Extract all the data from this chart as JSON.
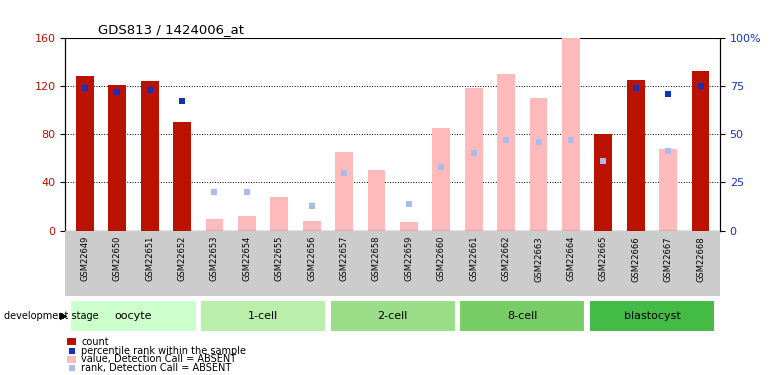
{
  "title": "GDS813 / 1424006_at",
  "samples": [
    "GSM22649",
    "GSM22650",
    "GSM22651",
    "GSM22652",
    "GSM22653",
    "GSM22654",
    "GSM22655",
    "GSM22656",
    "GSM22657",
    "GSM22658",
    "GSM22659",
    "GSM22660",
    "GSM22661",
    "GSM22662",
    "GSM22663",
    "GSM22664",
    "GSM22665",
    "GSM22666",
    "GSM22667",
    "GSM22668"
  ],
  "count_values": [
    128,
    121,
    124,
    90,
    null,
    null,
    null,
    null,
    null,
    null,
    null,
    null,
    null,
    null,
    null,
    null,
    80,
    125,
    null,
    132
  ],
  "rank_pct": [
    74,
    72,
    73,
    67,
    null,
    null,
    null,
    null,
    null,
    null,
    null,
    null,
    null,
    null,
    null,
    null,
    null,
    74,
    71,
    75
  ],
  "absent_value": [
    null,
    null,
    null,
    null,
    10,
    12,
    28,
    8,
    65,
    50,
    7,
    85,
    118,
    130,
    110,
    160,
    null,
    null,
    68,
    null
  ],
  "absent_rank_pct": [
    null,
    null,
    null,
    null,
    20,
    20,
    null,
    13,
    30,
    null,
    14,
    33,
    40,
    47,
    46,
    47,
    36,
    null,
    41,
    null
  ],
  "ylim_left": [
    0,
    160
  ],
  "ylim_right": [
    0,
    100
  ],
  "yticks_left": [
    0,
    40,
    80,
    120,
    160
  ],
  "yticks_right": [
    0,
    25,
    50,
    75,
    100
  ],
  "bar_color_dark": "#bb1100",
  "bar_color_absent": "#ffbbbb",
  "dot_color_rank": "#1133bb",
  "dot_color_absent_rank": "#aabbee",
  "label_area_bg": "#cccccc",
  "group_colors": [
    "#ccffcc",
    "#bbeeaa",
    "#99dd88",
    "#77cc66",
    "#44bb44"
  ],
  "group_border_color": "#ffffff"
}
